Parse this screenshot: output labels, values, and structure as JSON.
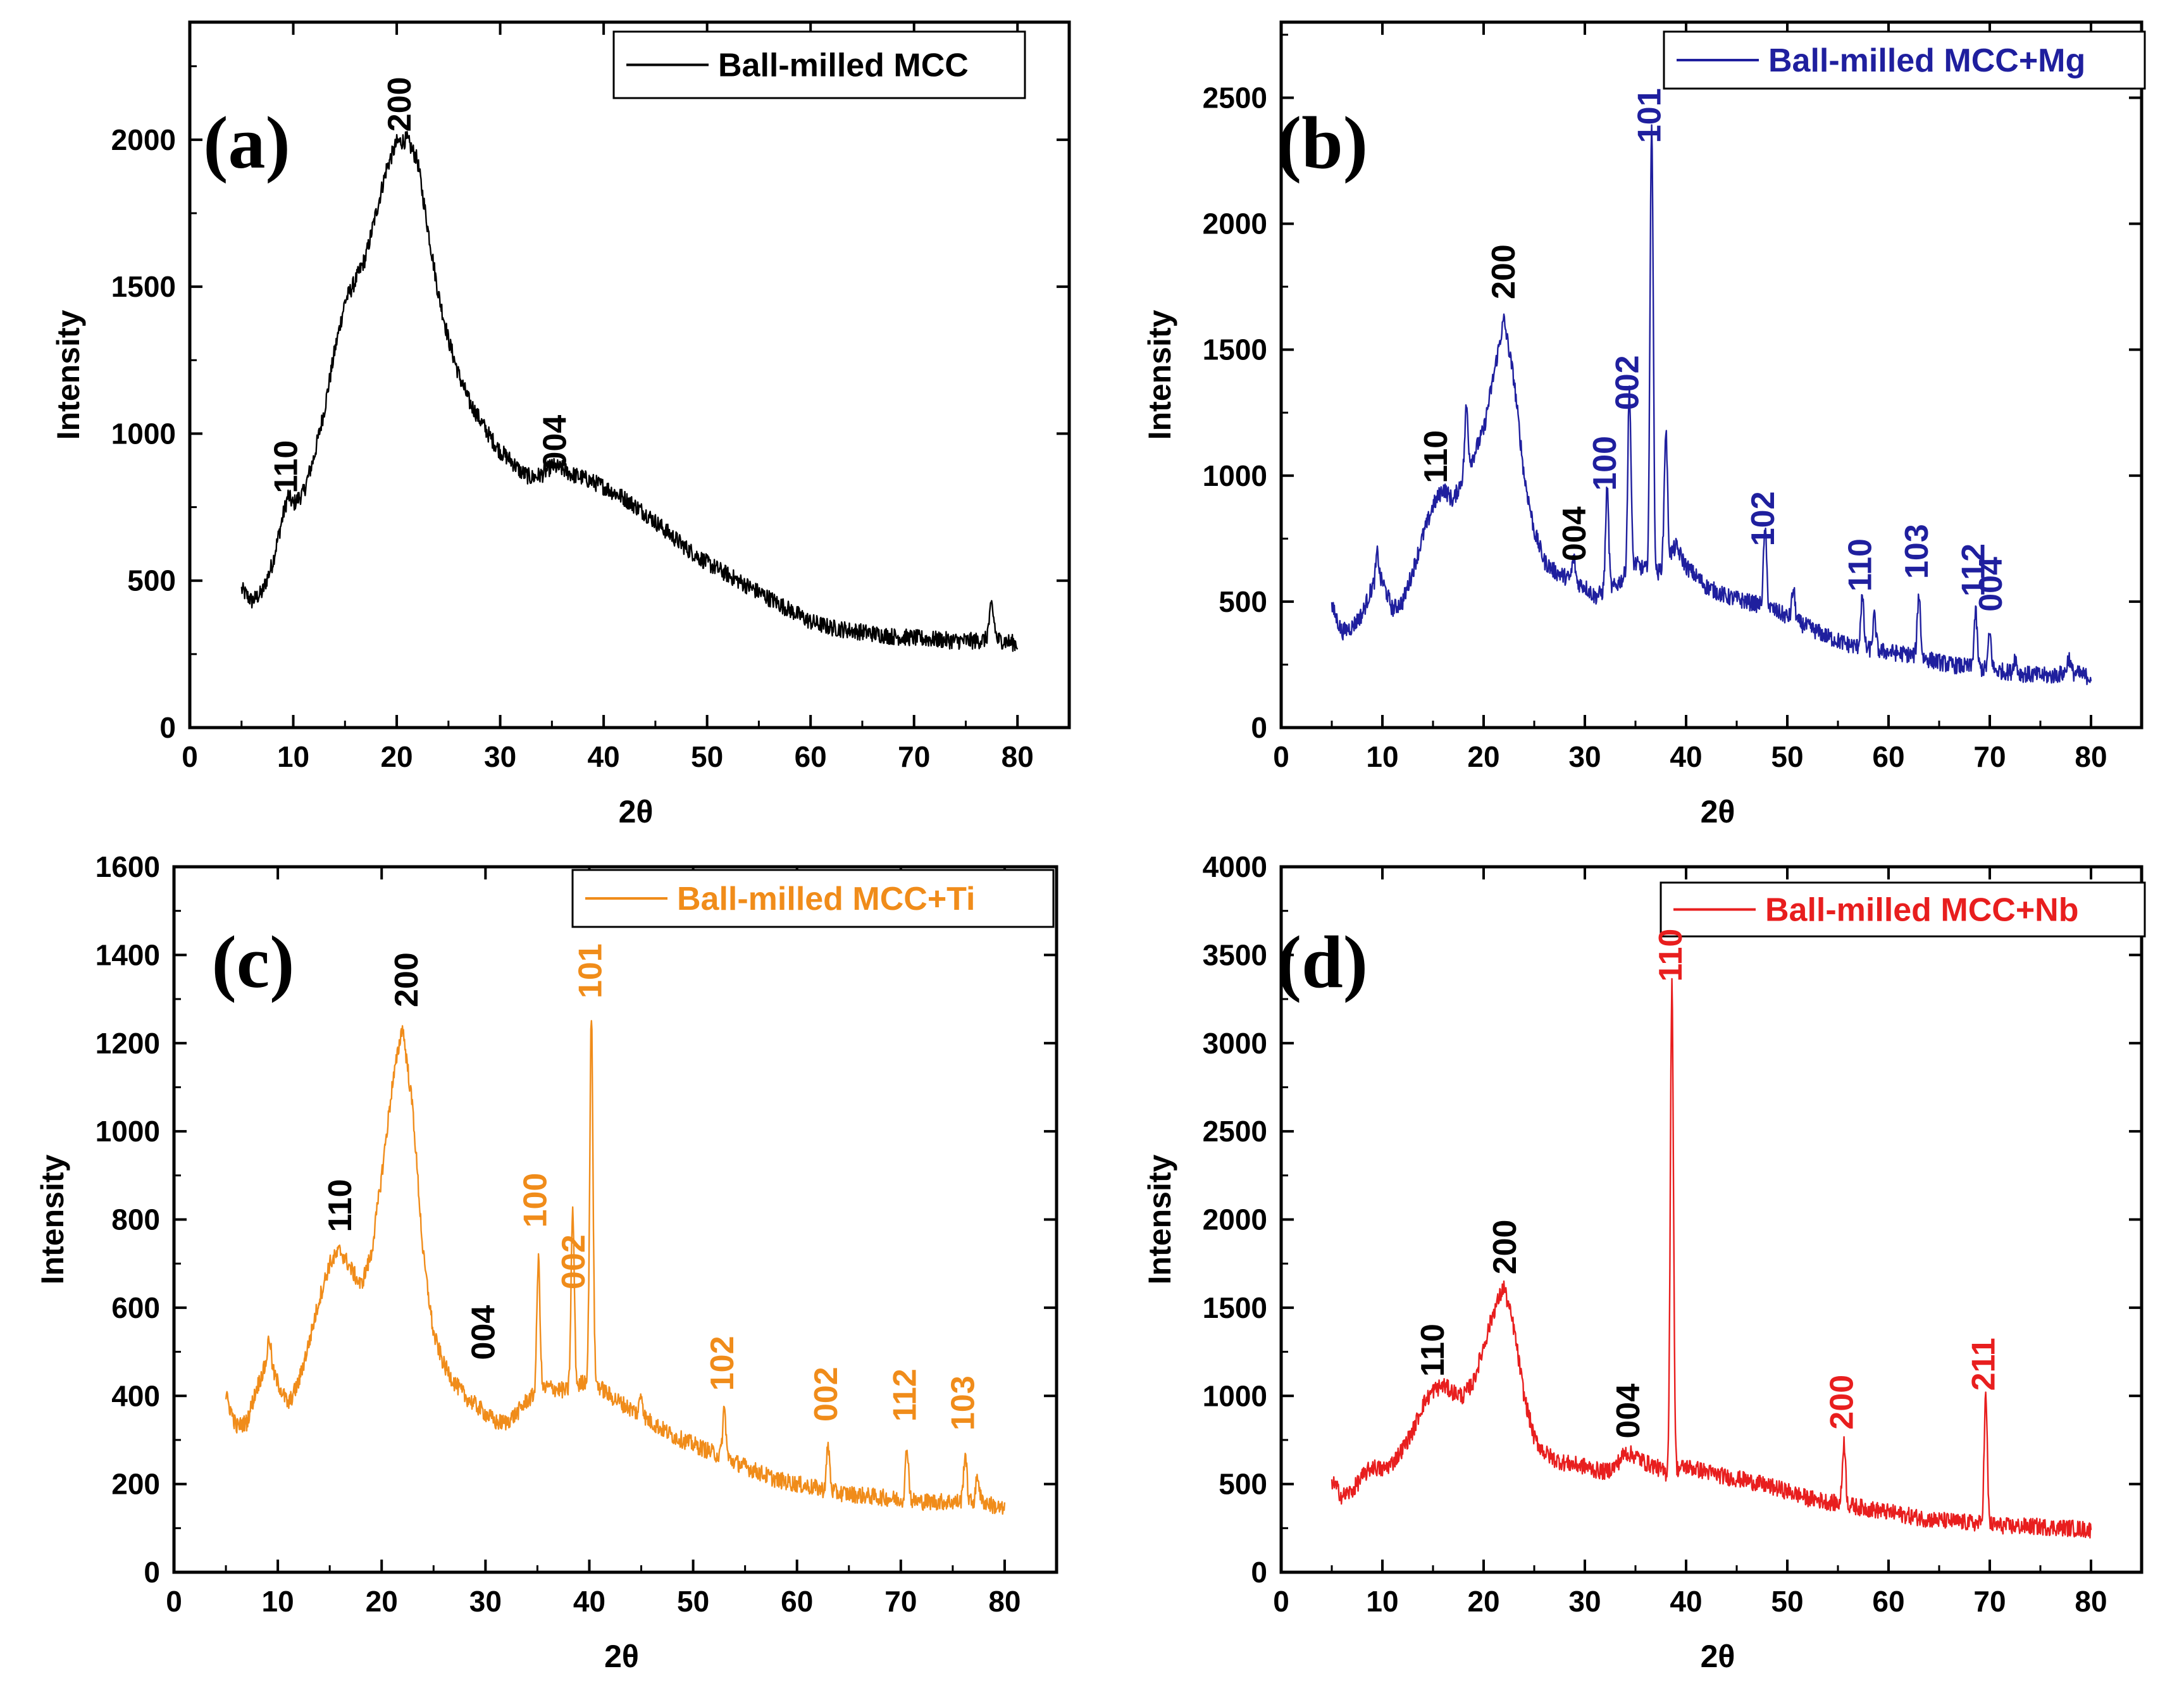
{
  "charts": [
    {
      "id": "a",
      "type": "line",
      "panel_label": "(a)",
      "legend": "Ball-milled MCC",
      "color": "#000000",
      "xlabel": "2θ",
      "ylabel": "Intensity",
      "xlim": [
        0,
        85
      ],
      "ylim": [
        0,
        2400
      ],
      "xticks": [
        0,
        10,
        20,
        30,
        40,
        50,
        60,
        70,
        80
      ],
      "yticks": [
        0,
        500,
        1000,
        1500,
        2000
      ],
      "profile": [
        [
          5,
          470
        ],
        [
          6,
          430
        ],
        [
          7,
          460
        ],
        [
          8,
          560
        ],
        [
          9,
          720
        ],
        [
          9.5,
          790
        ],
        [
          10,
          760
        ],
        [
          11,
          800
        ],
        [
          12,
          920
        ],
        [
          13,
          1080
        ],
        [
          14,
          1280
        ],
        [
          15,
          1450
        ],
        [
          16,
          1520
        ],
        [
          17,
          1600
        ],
        [
          18,
          1750
        ],
        [
          19,
          1900
        ],
        [
          20,
          1990
        ],
        [
          21,
          2000
        ],
        [
          22,
          1930
        ],
        [
          23,
          1700
        ],
        [
          24,
          1480
        ],
        [
          25,
          1320
        ],
        [
          26,
          1200
        ],
        [
          27,
          1110
        ],
        [
          28,
          1050
        ],
        [
          29,
          990
        ],
        [
          30,
          940
        ],
        [
          31,
          910
        ],
        [
          32,
          870
        ],
        [
          33,
          850
        ],
        [
          34,
          860
        ],
        [
          35,
          890
        ],
        [
          36,
          880
        ],
        [
          37,
          860
        ],
        [
          38,
          850
        ],
        [
          40,
          820
        ],
        [
          42,
          780
        ],
        [
          44,
          730
        ],
        [
          46,
          670
        ],
        [
          48,
          610
        ],
        [
          50,
          560
        ],
        [
          52,
          520
        ],
        [
          54,
          480
        ],
        [
          56,
          440
        ],
        [
          58,
          400
        ],
        [
          60,
          360
        ],
        [
          62,
          340
        ],
        [
          64,
          330
        ],
        [
          66,
          320
        ],
        [
          68,
          310
        ],
        [
          70,
          305
        ],
        [
          72,
          300
        ],
        [
          74,
          295
        ],
        [
          76,
          295
        ],
        [
          77,
          300
        ],
        [
          77.5,
          420
        ],
        [
          78,
          300
        ],
        [
          80,
          285
        ]
      ],
      "peaks": [],
      "peak_labels": [
        {
          "text": "110",
          "x": 9.5,
          "y": 780,
          "color": "#000000"
        },
        {
          "text": "200",
          "x": 20.5,
          "y": 2010,
          "color": "#000000"
        },
        {
          "text": "004",
          "x": 35.5,
          "y": 860,
          "color": "#000000"
        }
      ]
    },
    {
      "id": "b",
      "type": "line",
      "panel_label": "(b)",
      "legend": "Ball-milled MCC+Mg",
      "color": "#1f1f9e",
      "xlabel": "2θ",
      "ylabel": "Intensity",
      "xlim": [
        0,
        85
      ],
      "ylim": [
        0,
        2800
      ],
      "xticks": [
        0,
        10,
        20,
        30,
        40,
        50,
        60,
        70,
        80
      ],
      "yticks": [
        0,
        500,
        1000,
        1500,
        2000,
        2500
      ],
      "profile": [
        [
          5,
          480
        ],
        [
          6,
          380
        ],
        [
          7,
          400
        ],
        [
          8,
          450
        ],
        [
          9,
          560
        ],
        [
          10,
          580
        ],
        [
          11,
          470
        ],
        [
          12,
          500
        ],
        [
          13,
          620
        ],
        [
          14,
          760
        ],
        [
          15,
          880
        ],
        [
          16,
          950
        ],
        [
          17,
          900
        ],
        [
          18,
          1000
        ],
        [
          19,
          1080
        ],
        [
          20,
          1180
        ],
        [
          21,
          1400
        ],
        [
          22,
          1620
        ],
        [
          23,
          1380
        ],
        [
          24,
          1000
        ],
        [
          25,
          780
        ],
        [
          26,
          660
        ],
        [
          27,
          620
        ],
        [
          28,
          600
        ],
        [
          29,
          580
        ],
        [
          30,
          560
        ],
        [
          31,
          520
        ],
        [
          33,
          560
        ],
        [
          35,
          650
        ],
        [
          37,
          600
        ],
        [
          39,
          720
        ],
        [
          40,
          640
        ],
        [
          42,
          560
        ],
        [
          44,
          520
        ],
        [
          46,
          500
        ],
        [
          48,
          480
        ],
        [
          50,
          440
        ],
        [
          52,
          400
        ],
        [
          54,
          360
        ],
        [
          56,
          330
        ],
        [
          58,
          310
        ],
        [
          60,
          300
        ],
        [
          62,
          290
        ],
        [
          64,
          270
        ],
        [
          66,
          250
        ],
        [
          68,
          240
        ],
        [
          70,
          230
        ],
        [
          72,
          220
        ],
        [
          74,
          210
        ],
        [
          76,
          205
        ],
        [
          78,
          220
        ],
        [
          80,
          200
        ]
      ],
      "peaks": [
        [
          9.5,
          120
        ],
        [
          18.3,
          250
        ],
        [
          28.9,
          90
        ],
        [
          32.2,
          400
        ],
        [
          34.4,
          720
        ],
        [
          36.6,
          1800
        ],
        [
          38.0,
          520
        ],
        [
          47.8,
          300
        ],
        [
          50.6,
          120
        ],
        [
          57.4,
          200
        ],
        [
          58.6,
          130
        ],
        [
          63.0,
          250
        ],
        [
          68.6,
          220
        ],
        [
          70.0,
          140
        ],
        [
          72.5,
          60
        ],
        [
          77.8,
          60
        ]
      ],
      "peak_labels": [
        {
          "text": "110",
          "x": 15.5,
          "y": 950,
          "color": "#000000"
        },
        {
          "text": "200",
          "x": 22.2,
          "y": 1680,
          "color": "#000000"
        },
        {
          "text": "004",
          "x": 29.2,
          "y": 640,
          "color": "#000000"
        },
        {
          "text": "100",
          "x": 32.2,
          "y": 920,
          "color": "#1f1f9e"
        },
        {
          "text": "002",
          "x": 34.4,
          "y": 1240,
          "color": "#1f1f9e"
        },
        {
          "text": "101",
          "x": 36.6,
          "y": 2300,
          "color": "#1f1f9e"
        },
        {
          "text": "102",
          "x": 47.8,
          "y": 700,
          "color": "#1f1f9e"
        },
        {
          "text": "110",
          "x": 57.4,
          "y": 520,
          "color": "#1f1f9e"
        },
        {
          "text": "103",
          "x": 63.0,
          "y": 570,
          "color": "#1f1f9e"
        },
        {
          "text": "112",
          "x": 68.6,
          "y": 500,
          "color": "#1f1f9e"
        },
        {
          "text": "004",
          "x": 70.3,
          "y": 440,
          "color": "#1f1f9e"
        }
      ]
    },
    {
      "id": "c",
      "type": "line",
      "panel_label": "(c)",
      "legend": "Ball-milled MCC+Ti",
      "color": "#f08c1a",
      "xlabel": "2θ",
      "ylabel": "Intensity",
      "xlim": [
        0,
        85
      ],
      "ylim": [
        0,
        1600
      ],
      "xticks": [
        0,
        10,
        20,
        30,
        40,
        50,
        60,
        70,
        80
      ],
      "yticks": [
        0,
        200,
        400,
        600,
        800,
        1000,
        1200,
        1400,
        1600
      ],
      "profile": [
        [
          5,
          400
        ],
        [
          6,
          330
        ],
        [
          7,
          340
        ],
        [
          8,
          420
        ],
        [
          9,
          480
        ],
        [
          10,
          430
        ],
        [
          11,
          380
        ],
        [
          12,
          430
        ],
        [
          13,
          520
        ],
        [
          14,
          620
        ],
        [
          15,
          700
        ],
        [
          16,
          730
        ],
        [
          17,
          690
        ],
        [
          18,
          650
        ],
        [
          19,
          720
        ],
        [
          20,
          900
        ],
        [
          21,
          1100
        ],
        [
          22,
          1240
        ],
        [
          23,
          1050
        ],
        [
          24,
          720
        ],
        [
          25,
          540
        ],
        [
          26,
          470
        ],
        [
          27,
          430
        ],
        [
          28,
          400
        ],
        [
          29,
          380
        ],
        [
          30,
          360
        ],
        [
          31,
          340
        ],
        [
          32,
          340
        ],
        [
          33,
          360
        ],
        [
          34,
          390
        ],
        [
          36,
          420
        ],
        [
          38,
          410
        ],
        [
          40,
          440
        ],
        [
          42,
          400
        ],
        [
          44,
          370
        ],
        [
          46,
          340
        ],
        [
          48,
          310
        ],
        [
          50,
          290
        ],
        [
          52,
          270
        ],
        [
          54,
          250
        ],
        [
          56,
          230
        ],
        [
          58,
          210
        ],
        [
          60,
          200
        ],
        [
          62,
          190
        ],
        [
          64,
          180
        ],
        [
          66,
          175
        ],
        [
          68,
          170
        ],
        [
          70,
          165
        ],
        [
          72,
          160
        ],
        [
          74,
          160
        ],
        [
          76,
          160
        ],
        [
          78,
          160
        ],
        [
          80,
          140
        ]
      ],
      "peaks": [
        [
          9.2,
          60
        ],
        [
          35.1,
          300
        ],
        [
          38.4,
          400
        ],
        [
          40.2,
          820
        ],
        [
          45.0,
          50
        ],
        [
          53.0,
          110
        ],
        [
          63.0,
          100
        ],
        [
          70.6,
          120
        ],
        [
          76.2,
          110
        ],
        [
          77.4,
          60
        ]
      ],
      "peak_labels": [
        {
          "text": "110",
          "x": 16.2,
          "y": 760,
          "color": "#000000"
        },
        {
          "text": "200",
          "x": 22.6,
          "y": 1270,
          "color": "#000000"
        },
        {
          "text": "004",
          "x": 30.0,
          "y": 470,
          "color": "#000000"
        },
        {
          "text": "100",
          "x": 35.0,
          "y": 770,
          "color": "#f08c1a"
        },
        {
          "text": "002",
          "x": 38.7,
          "y": 630,
          "color": "#f08c1a"
        },
        {
          "text": "101",
          "x": 40.3,
          "y": 1290,
          "color": "#f08c1a"
        },
        {
          "text": "102",
          "x": 53.0,
          "y": 400,
          "color": "#f08c1a"
        },
        {
          "text": "002",
          "x": 63.0,
          "y": 330,
          "color": "#f08c1a"
        },
        {
          "text": "112",
          "x": 70.6,
          "y": 330,
          "color": "#f08c1a"
        },
        {
          "text": "103",
          "x": 76.2,
          "y": 310,
          "color": "#f08c1a"
        }
      ]
    },
    {
      "id": "d",
      "type": "line",
      "panel_label": "(d)",
      "legend": "Ball-milled MCC+Nb",
      "color": "#e81e1e",
      "xlabel": "2θ",
      "ylabel": "Intensity",
      "xlim": [
        0,
        85
      ],
      "ylim": [
        0,
        4000
      ],
      "xticks": [
        0,
        10,
        20,
        30,
        40,
        50,
        60,
        70,
        80
      ],
      "yticks": [
        0,
        500,
        1000,
        1500,
        2000,
        2500,
        3000,
        3500,
        4000
      ],
      "profile": [
        [
          5,
          520
        ],
        [
          6,
          430
        ],
        [
          7,
          460
        ],
        [
          8,
          540
        ],
        [
          9,
          600
        ],
        [
          10,
          580
        ],
        [
          11,
          620
        ],
        [
          12,
          700
        ],
        [
          13,
          800
        ],
        [
          14,
          950
        ],
        [
          15,
          1030
        ],
        [
          16,
          1060
        ],
        [
          17,
          1020
        ],
        [
          18,
          1000
        ],
        [
          19,
          1080
        ],
        [
          20,
          1280
        ],
        [
          21,
          1480
        ],
        [
          22,
          1620
        ],
        [
          23,
          1380
        ],
        [
          24,
          1000
        ],
        [
          25,
          760
        ],
        [
          26,
          680
        ],
        [
          27,
          640
        ],
        [
          28,
          620
        ],
        [
          29,
          610
        ],
        [
          30,
          600
        ],
        [
          31,
          580
        ],
        [
          32,
          570
        ],
        [
          33,
          600
        ],
        [
          34,
          680
        ],
        [
          35,
          660
        ],
        [
          36,
          620
        ],
        [
          37,
          600
        ],
        [
          38,
          560
        ],
        [
          40,
          600
        ],
        [
          42,
          570
        ],
        [
          44,
          540
        ],
        [
          46,
          520
        ],
        [
          48,
          490
        ],
        [
          50,
          460
        ],
        [
          52,
          420
        ],
        [
          54,
          400
        ],
        [
          56,
          380
        ],
        [
          58,
          360
        ],
        [
          60,
          340
        ],
        [
          62,
          320
        ],
        [
          64,
          300
        ],
        [
          66,
          290
        ],
        [
          68,
          280
        ],
        [
          70,
          270
        ],
        [
          72,
          260
        ],
        [
          74,
          260
        ],
        [
          76,
          255
        ],
        [
          78,
          250
        ],
        [
          80,
          240
        ]
      ],
      "peaks": [
        [
          38.6,
          2750
        ],
        [
          55.6,
          360
        ],
        [
          69.6,
          720
        ]
      ],
      "peak_labels": [
        {
          "text": "110",
          "x": 15.2,
          "y": 1080,
          "color": "#000000"
        },
        {
          "text": "200",
          "x": 22.3,
          "y": 1660,
          "color": "#000000"
        },
        {
          "text": "004",
          "x": 34.5,
          "y": 730,
          "color": "#000000"
        },
        {
          "text": "110",
          "x": 38.7,
          "y": 3320,
          "color": "#e81e1e"
        },
        {
          "text": "200",
          "x": 55.6,
          "y": 780,
          "color": "#e81e1e"
        },
        {
          "text": "211",
          "x": 69.6,
          "y": 1000,
          "color": "#e81e1e"
        }
      ]
    }
  ]
}
